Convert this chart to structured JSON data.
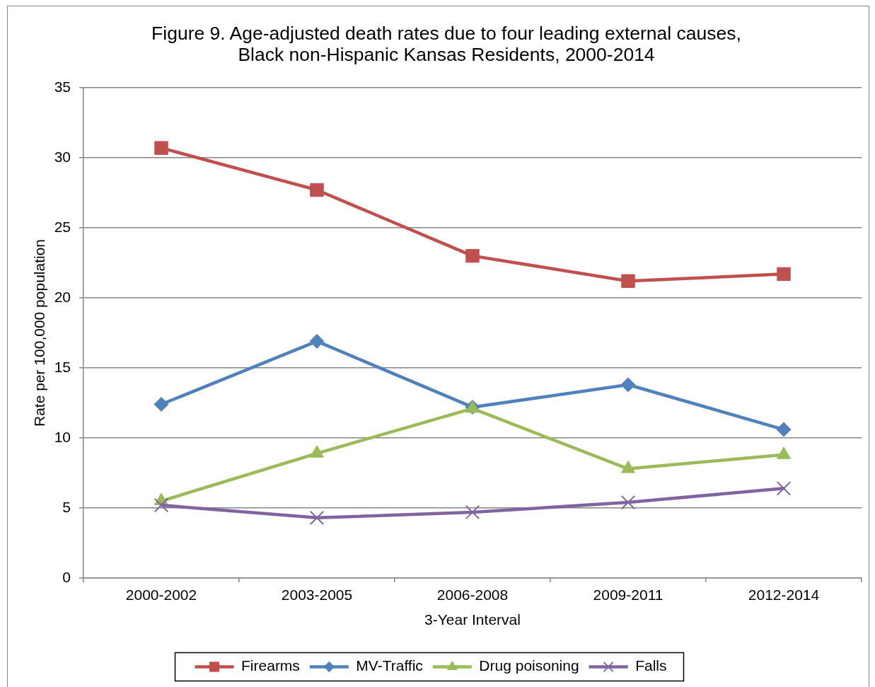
{
  "chart_data": {
    "type": "line",
    "title": "Figure 9. Age-adjusted death rates due to four leading external causes, Black non-Hispanic Kansas Residents, 2000-2014",
    "xlabel": "3-Year Interval",
    "ylabel": "Rate per 100,000 population",
    "categories": [
      "2000-2002",
      "2003-2005",
      "2006-2008",
      "2009-2011",
      "2012-2014"
    ],
    "series": [
      {
        "name": "Firearms",
        "color": "#c0504d",
        "marker": "square",
        "values": [
          30.7,
          27.7,
          23.0,
          21.2,
          21.7
        ]
      },
      {
        "name": "MV-Traffic",
        "color": "#4f81bd",
        "marker": "diamond",
        "values": [
          12.4,
          16.9,
          12.2,
          13.8,
          10.6
        ]
      },
      {
        "name": "Drug poisoning",
        "color": "#9bbb59",
        "marker": "triangle",
        "values": [
          5.5,
          8.9,
          12.1,
          7.8,
          8.8
        ]
      },
      {
        "name": "Falls",
        "color": "#8064a2",
        "marker": "cross",
        "values": [
          5.2,
          4.3,
          4.7,
          5.4,
          6.4
        ]
      }
    ],
    "ylim": [
      0,
      35
    ],
    "yticks": [
      0,
      5,
      10,
      15,
      20,
      25,
      30,
      35
    ],
    "grid": "y",
    "legend": "bottom",
    "line_style": "solid"
  }
}
